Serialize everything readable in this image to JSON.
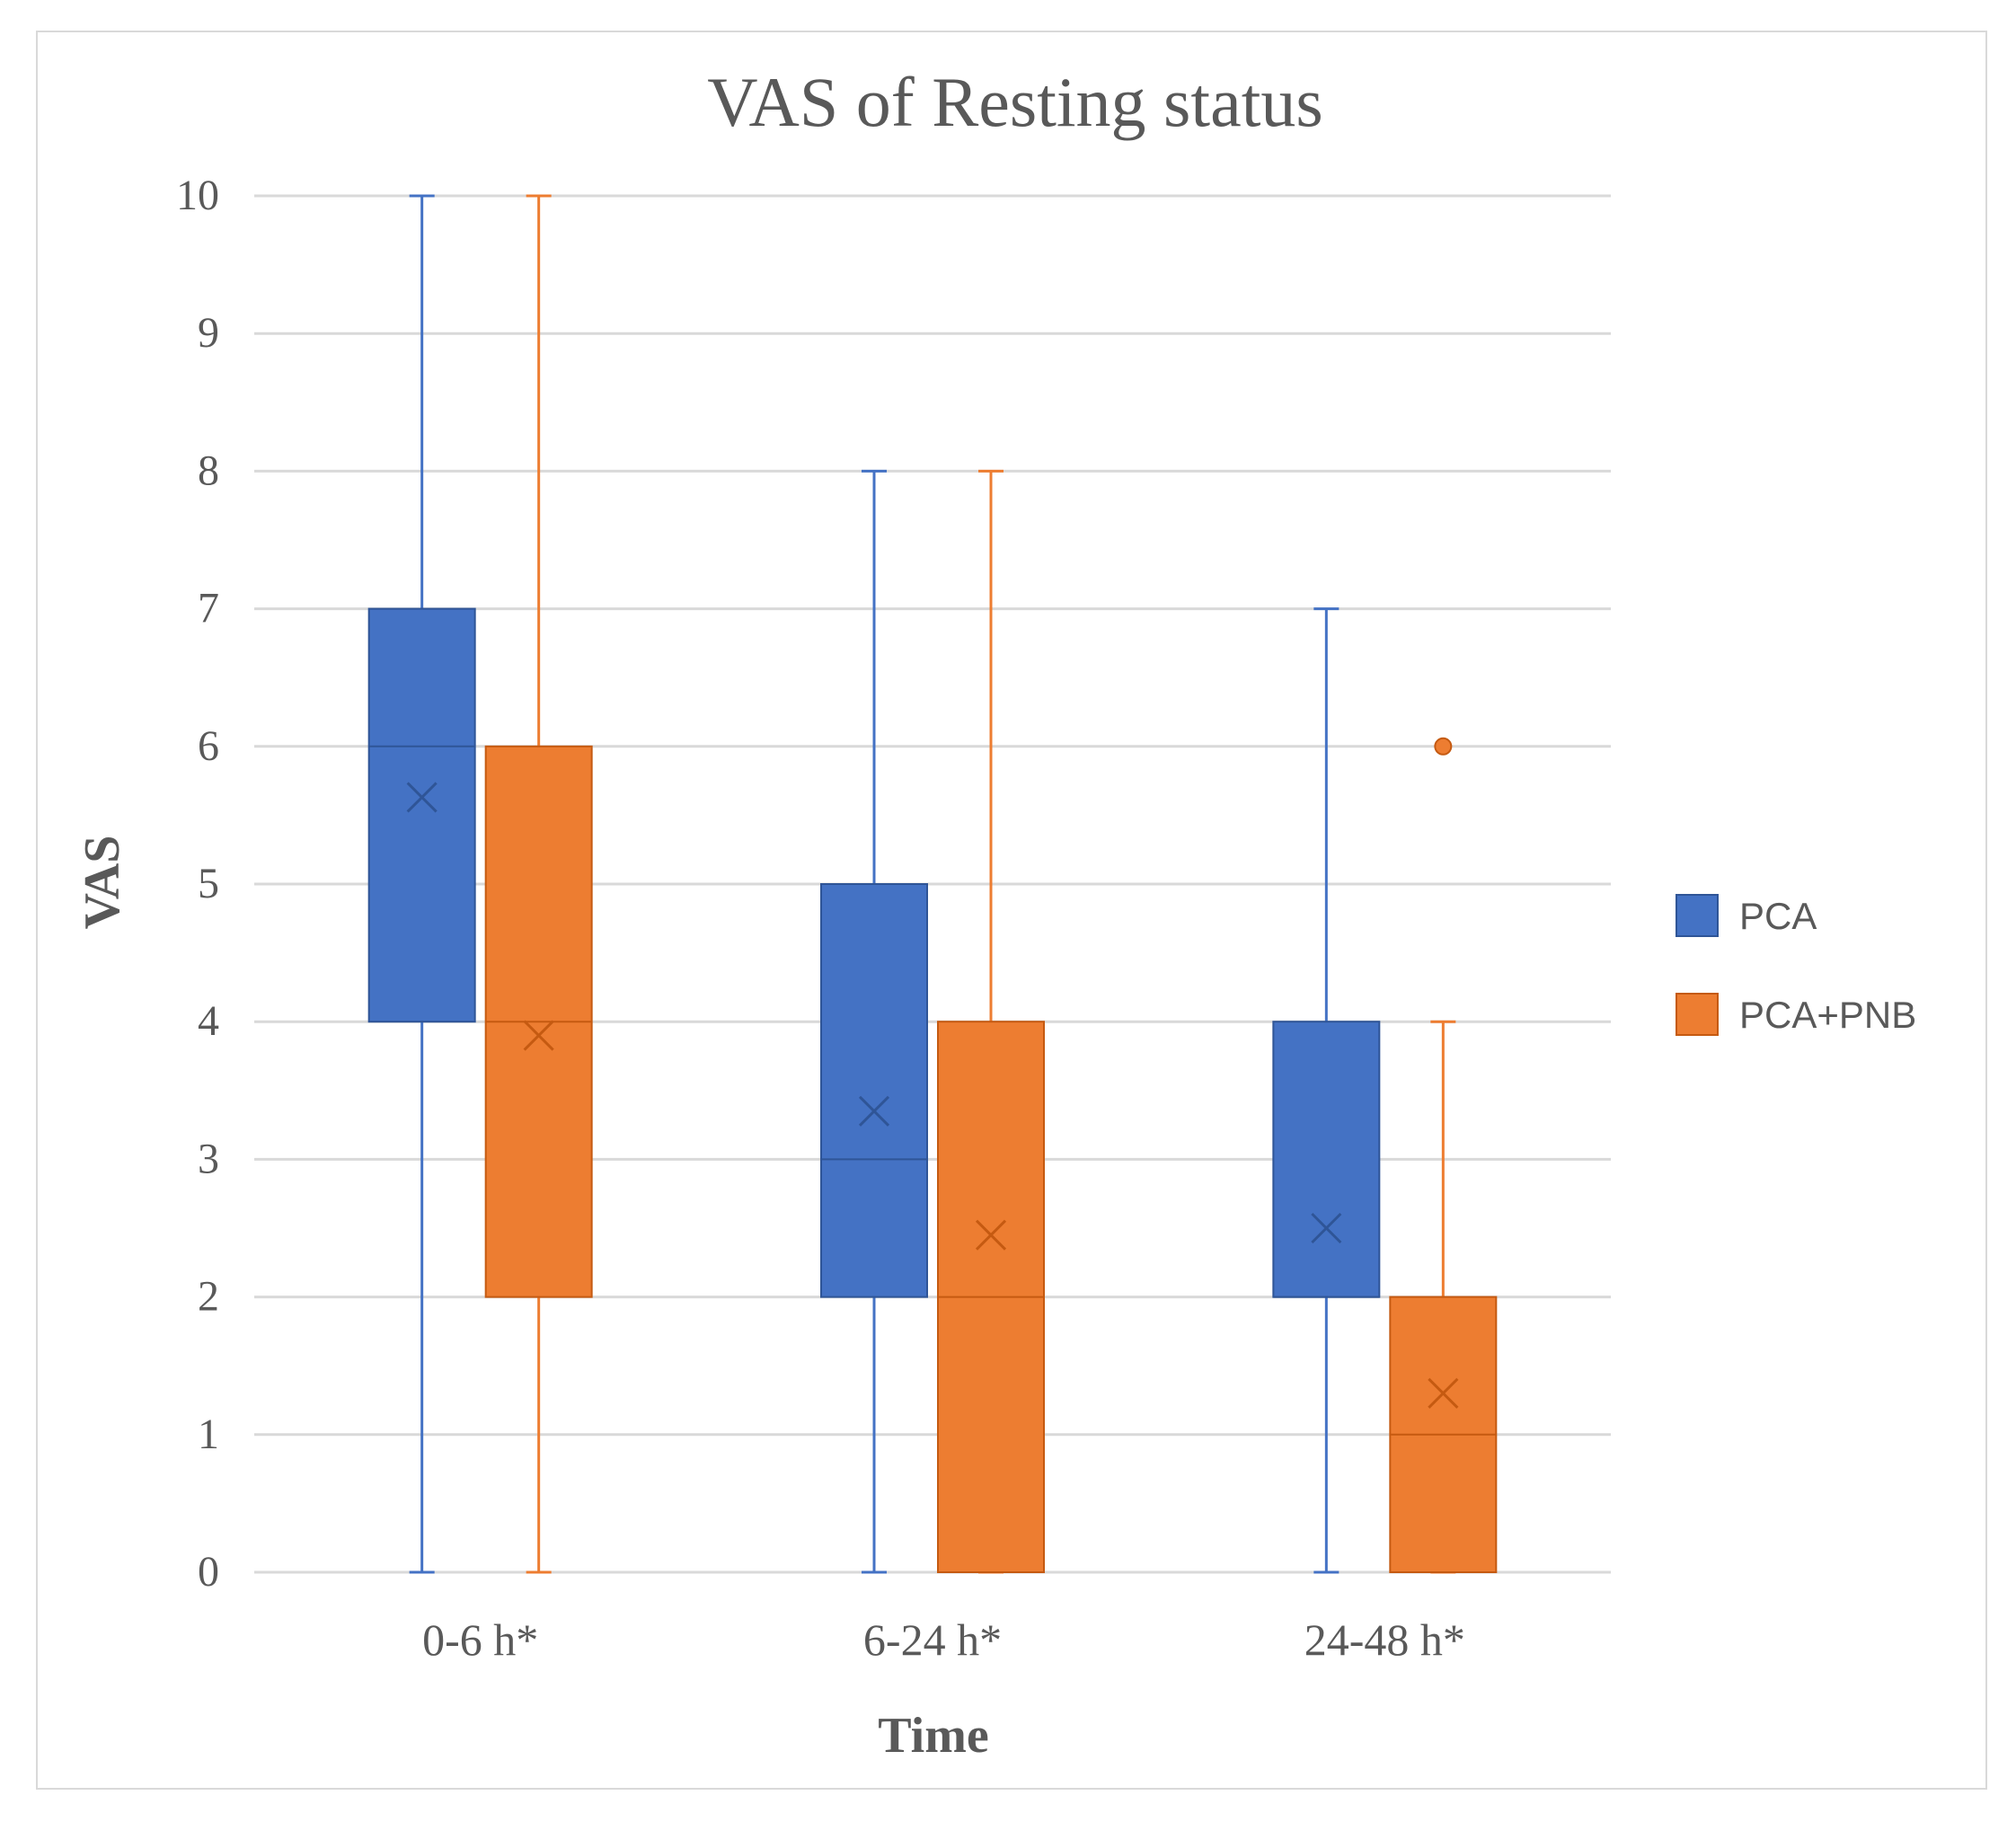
{
  "chart_data": {
    "type": "boxplot",
    "title": "VAS of Resting status",
    "xlabel": "Time",
    "ylabel": "VAS",
    "ylim": [
      0,
      10
    ],
    "yticks": [
      0,
      1,
      2,
      3,
      4,
      5,
      6,
      7,
      8,
      9,
      10
    ],
    "grid": true,
    "legend_position": "right",
    "categories": [
      "0-6 h*",
      "6-24 h*",
      "24-48 h*"
    ],
    "series": [
      {
        "name": "PCA",
        "color": "#4472c4",
        "boxes": [
          {
            "min": 0,
            "q1": 4,
            "median": 6,
            "q3": 7,
            "max": 10,
            "mean": 5.63,
            "outliers": []
          },
          {
            "min": 0,
            "q1": 2,
            "median": 3,
            "q3": 5,
            "max": 8,
            "mean": 3.35,
            "outliers": []
          },
          {
            "min": 0,
            "q1": 2,
            "median": 2,
            "q3": 4,
            "max": 7,
            "mean": 2.5,
            "outliers": []
          }
        ]
      },
      {
        "name": "PCA+PNB",
        "color": "#ed7d31",
        "boxes": [
          {
            "min": 0,
            "q1": 2,
            "median": 4,
            "q3": 6,
            "max": 10,
            "mean": 3.9,
            "outliers": []
          },
          {
            "min": 0,
            "q1": 0,
            "median": 2,
            "q3": 4,
            "max": 8,
            "mean": 2.45,
            "outliers": []
          },
          {
            "min": 0,
            "q1": 0,
            "median": 1,
            "q3": 2,
            "max": 4,
            "mean": 1.3,
            "outliers": [
              6
            ]
          }
        ]
      }
    ]
  }
}
